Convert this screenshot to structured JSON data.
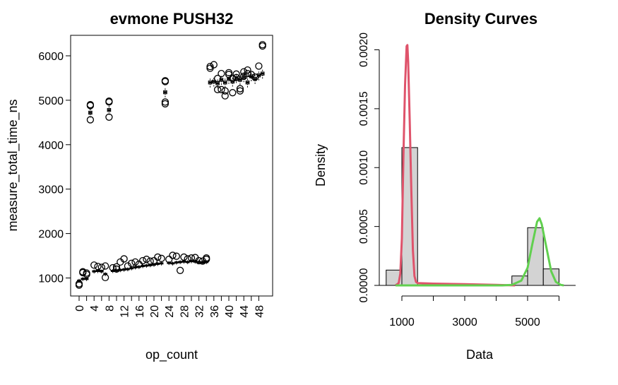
{
  "left_chart": {
    "title": "evmone PUSH32",
    "xlabel": "op_count",
    "ylabel": "measure_total_time_ns"
  },
  "right_chart": {
    "title": "Density Curves",
    "xlabel": "Data",
    "ylabel": "Density"
  },
  "chart_data": [
    {
      "type": "box",
      "title": "evmone PUSH32",
      "xlabel": "op_count",
      "ylabel": "measure_total_time_ns",
      "ylim": [
        800,
        6400
      ],
      "yticks": [
        1000,
        2000,
        3000,
        4000,
        5000,
        6000
      ],
      "x_tick_labels": [
        "0",
        "4",
        "8",
        "12",
        "16",
        "20",
        "24",
        "28",
        "32",
        "36",
        "40",
        "44",
        "48"
      ],
      "categories": [
        0,
        1,
        2,
        3,
        4,
        5,
        6,
        7,
        8,
        9,
        10,
        11,
        12,
        13,
        14,
        15,
        16,
        17,
        18,
        19,
        20,
        21,
        22,
        23,
        24,
        25,
        26,
        27,
        28,
        29,
        30,
        31,
        32,
        33,
        34,
        35,
        36,
        37,
        38,
        39,
        40,
        41,
        42,
        43,
        44,
        45,
        46,
        47,
        48,
        49
      ],
      "medians": [
        940,
        980,
        980,
        4720,
        1150,
        1160,
        1150,
        1090,
        4780,
        1160,
        1170,
        1180,
        1190,
        1200,
        1220,
        1240,
        1250,
        1270,
        1280,
        1290,
        1300,
        1320,
        1330,
        5180,
        1340,
        1330,
        1350,
        1360,
        1370,
        1360,
        1380,
        1370,
        1360,
        1350,
        1360,
        5400,
        5420,
        5380,
        5460,
        5400,
        5480,
        5420,
        5500,
        5460,
        5520,
        5400,
        5540,
        5480,
        5560,
        5600
      ],
      "outliers": [
        [
          0,
          840
        ],
        [
          0,
          870
        ],
        [
          1,
          1140
        ],
        [
          1,
          1120
        ],
        [
          2,
          1080
        ],
        [
          2,
          1110
        ],
        [
          3,
          4560
        ],
        [
          3,
          4880
        ],
        [
          3,
          4900
        ],
        [
          4,
          1290
        ],
        [
          5,
          1260
        ],
        [
          6,
          1240
        ],
        [
          7,
          1270
        ],
        [
          7,
          1010
        ],
        [
          8,
          4620
        ],
        [
          8,
          4960
        ],
        [
          8,
          4980
        ],
        [
          9,
          1230
        ],
        [
          10,
          1200
        ],
        [
          10,
          1250
        ],
        [
          11,
          1360
        ],
        [
          12,
          1430
        ],
        [
          13,
          1270
        ],
        [
          14,
          1330
        ],
        [
          15,
          1360
        ],
        [
          16,
          1310
        ],
        [
          17,
          1390
        ],
        [
          18,
          1420
        ],
        [
          19,
          1380
        ],
        [
          20,
          1390
        ],
        [
          21,
          1470
        ],
        [
          22,
          1440
        ],
        [
          23,
          4920
        ],
        [
          23,
          4960
        ],
        [
          23,
          5420
        ],
        [
          23,
          5440
        ],
        [
          24,
          1420
        ],
        [
          25,
          1510
        ],
        [
          26,
          1490
        ],
        [
          27,
          1170
        ],
        [
          28,
          1470
        ],
        [
          29,
          1430
        ],
        [
          30,
          1450
        ],
        [
          31,
          1460
        ],
        [
          32,
          1390
        ],
        [
          33,
          1380
        ],
        [
          34,
          1450
        ],
        [
          34,
          1420
        ],
        [
          35,
          5760
        ],
        [
          35,
          5720
        ],
        [
          36,
          5800
        ],
        [
          37,
          5490
        ],
        [
          37,
          5240
        ],
        [
          38,
          5600
        ],
        [
          38,
          5240
        ],
        [
          39,
          5100
        ],
        [
          39,
          5210
        ],
        [
          40,
          5620
        ],
        [
          40,
          5580
        ],
        [
          41,
          5170
        ],
        [
          41,
          5490
        ],
        [
          42,
          5590
        ],
        [
          42,
          5510
        ],
        [
          43,
          5210
        ],
        [
          43,
          5260
        ],
        [
          44,
          5540
        ],
        [
          44,
          5640
        ],
        [
          45,
          5680
        ],
        [
          45,
          5600
        ],
        [
          46,
          5580
        ],
        [
          47,
          5520
        ],
        [
          48,
          5770
        ],
        [
          49,
          6220
        ],
        [
          49,
          6250
        ]
      ]
    },
    {
      "type": "histogram",
      "title": "Density Curves",
      "xlabel": "Data",
      "ylabel": "Density",
      "xlim": [
        500,
        6200
      ],
      "ylim": [
        0,
        0.002
      ],
      "xticks": [
        1000,
        3000,
        5000
      ],
      "yticks": [
        0.0,
        0.0005,
        0.001,
        0.0015,
        0.002
      ],
      "ytick_labels": [
        "0.0000",
        "0.0005",
        "0.0010",
        "0.0015",
        "0.0020"
      ],
      "bins": [
        {
          "x0": 500,
          "x1": 1000,
          "density": 0.00013
        },
        {
          "x0": 1000,
          "x1": 1500,
          "density": 0.00117
        },
        {
          "x0": 1500,
          "x1": 2000,
          "density": 0
        },
        {
          "x0": 2000,
          "x1": 2500,
          "density": 0
        },
        {
          "x0": 2500,
          "x1": 3000,
          "density": 0
        },
        {
          "x0": 3000,
          "x1": 3500,
          "density": 0
        },
        {
          "x0": 3500,
          "x1": 4000,
          "density": 0
        },
        {
          "x0": 4000,
          "x1": 4500,
          "density": 0
        },
        {
          "x0": 4500,
          "x1": 5000,
          "density": 8e-05
        },
        {
          "x0": 5000,
          "x1": 5500,
          "density": 0.00049
        },
        {
          "x0": 5500,
          "x1": 6000,
          "density": 0.00014
        }
      ],
      "series": [
        {
          "color": "#DF536B",
          "points": [
            [
              800,
              0
            ],
            [
              900,
              2e-05
            ],
            [
              950,
              0.0001
            ],
            [
              1000,
              0.0004
            ],
            [
              1050,
              0.0011
            ],
            [
              1100,
              0.0017
            ],
            [
              1150,
              0.00203
            ],
            [
              1175,
              0.00204
            ],
            [
              1200,
              0.0019
            ],
            [
              1250,
              0.0014
            ],
            [
              1300,
              0.0008
            ],
            [
              1350,
              0.0003
            ],
            [
              1400,
              8e-05
            ],
            [
              1450,
              3e-05
            ],
            [
              1500,
              2e-05
            ],
            [
              2000,
              1.5e-05
            ],
            [
              3000,
              1e-05
            ],
            [
              4000,
              5e-06
            ],
            [
              4600,
              0
            ]
          ]
        },
        {
          "color": "#61D04F",
          "points": [
            [
              800,
              0
            ],
            [
              4200,
              0
            ],
            [
              4500,
              5e-06
            ],
            [
              4800,
              4e-05
            ],
            [
              5000,
              0.00015
            ],
            [
              5150,
              0.00035
            ],
            [
              5300,
              0.00054
            ],
            [
              5380,
              0.00057
            ],
            [
              5450,
              0.00052
            ],
            [
              5600,
              0.00032
            ],
            [
              5750,
              0.00012
            ],
            [
              5900,
              3e-05
            ],
            [
              6050,
              5e-06
            ],
            [
              6150,
              0
            ]
          ]
        }
      ]
    }
  ]
}
